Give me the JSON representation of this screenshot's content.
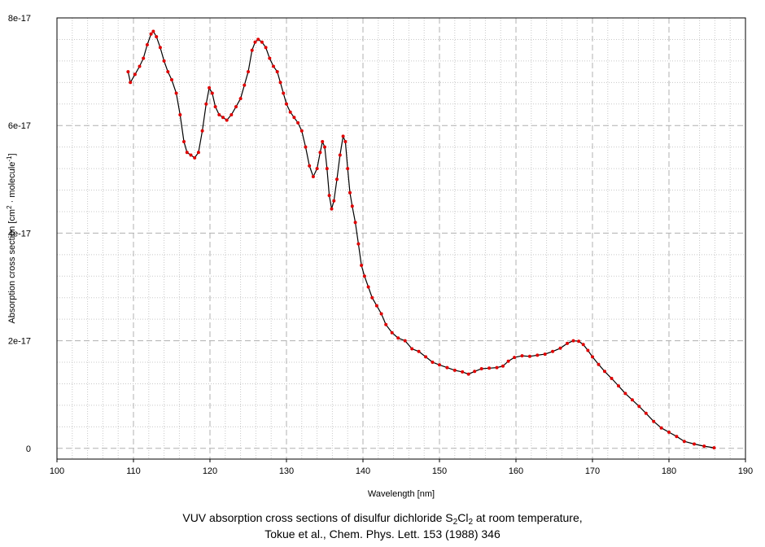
{
  "chart_data": {
    "type": "line",
    "xlabel": "Wavelength [nm]",
    "ylabel_parts": {
      "prefix": "Absorption cross section [cm",
      "sup1": "2",
      "middle": " · molecule",
      "sup2": "-1",
      "suffix": "]"
    },
    "xlim": [
      100,
      190
    ],
    "ylim": [
      -2e-18,
      8e-17
    ],
    "x_ticks": [
      "100",
      "110",
      "120",
      "130",
      "140",
      "150",
      "160",
      "170",
      "180",
      "190"
    ],
    "y_ticks": [
      {
        "value": 0,
        "label": "0"
      },
      {
        "value": 2e-17,
        "label": "2e-17"
      },
      {
        "value": 4e-17,
        "label": "4e-17"
      },
      {
        "value": 6e-17,
        "label": "6e-17"
      },
      {
        "value": 8e-17,
        "label": "8e-17"
      }
    ],
    "grid": true,
    "line_color": "#000000",
    "marker_color": "#e00000",
    "series": [
      {
        "x": [
          109.3,
          109.6,
          110.2,
          110.8,
          111.3,
          111.8,
          112.3,
          112.6,
          113.0,
          113.5,
          114.0,
          114.5,
          115.0,
          115.6,
          116.1,
          116.6,
          117.0,
          117.5,
          118.0,
          118.5,
          119.0,
          119.5,
          119.9,
          120.3,
          120.7,
          121.2,
          121.7,
          122.2,
          122.8,
          123.4,
          124.0,
          124.5,
          125.0,
          125.5,
          125.9,
          126.3,
          126.8,
          127.3,
          127.8,
          128.3,
          128.8,
          129.2,
          129.6,
          130.0,
          130.5,
          131.0,
          131.5,
          132.0,
          132.5,
          133.0,
          133.5,
          134.0,
          134.4,
          134.7,
          135.0,
          135.3,
          135.6,
          135.9,
          136.2,
          136.6,
          137.0,
          137.4,
          137.7,
          138.0,
          138.3,
          138.6,
          139.0,
          139.4,
          139.8,
          140.2,
          140.7,
          141.2,
          141.8,
          142.4,
          143.0,
          143.8,
          144.6,
          145.5,
          146.4,
          147.3,
          148.2,
          149.1,
          150.0,
          151.0,
          152.0,
          153.0,
          153.8,
          154.6,
          155.5,
          156.5,
          157.5,
          158.3,
          159.0,
          159.8,
          160.8,
          161.8,
          162.8,
          163.8,
          164.8,
          165.8,
          166.7,
          167.5,
          168.2,
          168.8,
          169.4,
          170.0,
          170.8,
          171.6,
          172.5,
          173.4,
          174.3,
          175.2,
          176.1,
          177.0,
          178.0,
          179.0,
          180.0,
          181.0,
          182.0,
          183.3,
          184.6,
          185.9
        ],
        "y": [
          7e-17,
          6.8e-17,
          6.95e-17,
          7.1e-17,
          7.25e-17,
          7.5e-17,
          7.7e-17,
          7.75e-17,
          7.65e-17,
          7.45e-17,
          7.2e-17,
          7e-17,
          6.85e-17,
          6.6e-17,
          6.2e-17,
          5.7e-17,
          5.5e-17,
          5.45e-17,
          5.4e-17,
          5.5e-17,
          5.9e-17,
          6.4e-17,
          6.7e-17,
          6.6e-17,
          6.35e-17,
          6.2e-17,
          6.15e-17,
          6.1e-17,
          6.2e-17,
          6.35e-17,
          6.5e-17,
          6.75e-17,
          7e-17,
          7.4e-17,
          7.55e-17,
          7.6e-17,
          7.55e-17,
          7.45e-17,
          7.25e-17,
          7.1e-17,
          7e-17,
          6.8e-17,
          6.6e-17,
          6.4e-17,
          6.25e-17,
          6.15e-17,
          6.05e-17,
          5.9e-17,
          5.6e-17,
          5.25e-17,
          5.05e-17,
          5.2e-17,
          5.5e-17,
          5.7e-17,
          5.6e-17,
          5.2e-17,
          4.7e-17,
          4.45e-17,
          4.6e-17,
          5e-17,
          5.45e-17,
          5.8e-17,
          5.7e-17,
          5.2e-17,
          4.75e-17,
          4.5e-17,
          4.2e-17,
          3.8e-17,
          3.4e-17,
          3.2e-17,
          3e-17,
          2.8e-17,
          2.65e-17,
          2.5e-17,
          2.3e-17,
          2.15e-17,
          2.05e-17,
          2e-17,
          1.85e-17,
          1.8e-17,
          1.7e-17,
          1.6e-17,
          1.55e-17,
          1.5e-17,
          1.45e-17,
          1.42e-17,
          1.38e-17,
          1.43e-17,
          1.48e-17,
          1.49e-17,
          1.5e-17,
          1.53e-17,
          1.62e-17,
          1.69e-17,
          1.72e-17,
          1.71e-17,
          1.73e-17,
          1.75e-17,
          1.8e-17,
          1.86e-17,
          1.95e-17,
          2e-17,
          1.99e-17,
          1.93e-17,
          1.82e-17,
          1.7e-17,
          1.56e-17,
          1.43e-17,
          1.3e-17,
          1.16e-17,
          1.02e-17,
          9e-18,
          7.8e-18,
          6.5e-18,
          5e-18,
          3.8e-18,
          3e-18,
          2.2e-18,
          1.3e-18,
          8e-19,
          4e-19,
          1e-19
        ]
      }
    ]
  },
  "caption": {
    "line1_prefix": "VUV absorption cross sections of disulfur dichloride S",
    "line1_sub1": "2",
    "line1_mid": "Cl",
    "line1_sub2": "2",
    "line1_suffix": " at room temperature,",
    "line2": "Tokue et al., Chem. Phys. Lett. 153 (1988) 346"
  }
}
